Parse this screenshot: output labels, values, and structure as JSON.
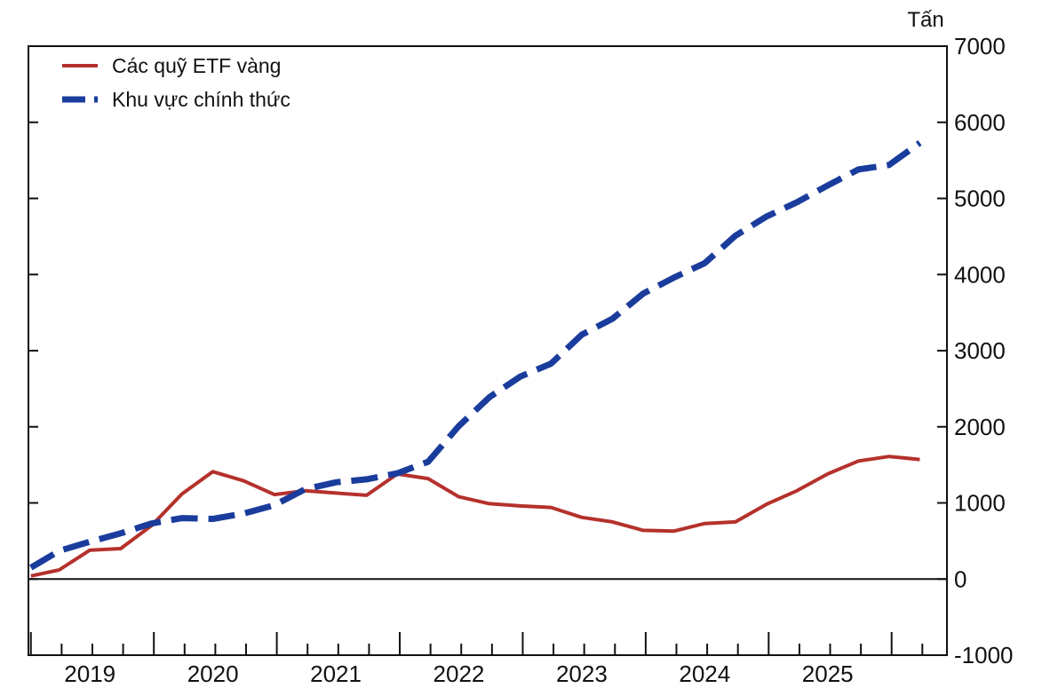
{
  "chart_data": {
    "type": "line",
    "title": "",
    "xlabel": "",
    "ylabel": "Tấn",
    "ylim": [
      -1000,
      7000
    ],
    "yticks": [
      -1000,
      0,
      1000,
      2000,
      3000,
      4000,
      5000,
      6000,
      7000
    ],
    "y_axis_side": "right",
    "grid": false,
    "legend_position": "top-left",
    "zero_line": true,
    "x_range": [
      2018.5,
      2025.97
    ],
    "year_labels": [
      "2019",
      "2020",
      "2021",
      "2022",
      "2023",
      "2024",
      "2025"
    ],
    "year_label_positions": [
      2019.0,
      2020.0,
      2021.0,
      2022.0,
      2023.0,
      2024.0,
      2025.0
    ],
    "x_ticks_major": [
      2018.52,
      2019.52,
      2020.52,
      2021.52,
      2022.52,
      2023.52,
      2024.52,
      2025.52
    ],
    "x_ticks_minor": [
      2018.77,
      2019.02,
      2019.27,
      2019.77,
      2020.02,
      2020.27,
      2020.77,
      2021.02,
      2021.27,
      2021.77,
      2022.02,
      2022.27,
      2022.77,
      2023.02,
      2023.27,
      2023.77,
      2024.02,
      2024.27,
      2024.77,
      2025.02,
      2025.27,
      2025.77
    ],
    "series": [
      {
        "name": "Các quỹ ETF vàng",
        "color": "#b5312c",
        "style": "solid",
        "x": [
          2018.52,
          2018.75,
          2019.0,
          2019.25,
          2019.5,
          2019.75,
          2020.0,
          2020.25,
          2020.5,
          2020.75,
          2021.0,
          2021.25,
          2021.5,
          2021.75,
          2022.0,
          2022.25,
          2022.5,
          2022.75,
          2023.0,
          2023.25,
          2023.5,
          2023.75,
          2024.0,
          2024.25,
          2024.5,
          2024.75,
          2025.0,
          2025.25,
          2025.5,
          2025.75
        ],
        "values": [
          40,
          120,
          380,
          400,
          700,
          1120,
          1410,
          1290,
          1110,
          1160,
          1130,
          1100,
          1380,
          1320,
          1080,
          990,
          960,
          940,
          810,
          750,
          640,
          630,
          730,
          750,
          980,
          1160,
          1380,
          1550,
          1610,
          1570
        ]
      },
      {
        "name": " Khu vực chính thức",
        "color": "#1a3c9c",
        "style": "dashed",
        "x": [
          2018.52,
          2018.75,
          2019.0,
          2019.25,
          2019.5,
          2019.75,
          2020.0,
          2020.25,
          2020.5,
          2020.75,
          2021.0,
          2021.25,
          2021.5,
          2021.75,
          2022.0,
          2022.25,
          2022.5,
          2022.75,
          2023.0,
          2023.25,
          2023.5,
          2023.75,
          2024.0,
          2024.25,
          2024.5,
          2024.75,
          2025.0,
          2025.25,
          2025.5,
          2025.75
        ],
        "values": [
          150,
          370,
          490,
          600,
          730,
          800,
          790,
          860,
          970,
          1180,
          1270,
          1310,
          1390,
          1540,
          2010,
          2390,
          2660,
          2830,
          3210,
          3420,
          3750,
          3960,
          4150,
          4510,
          4760,
          4950,
          5170,
          5380,
          5440,
          5730
        ]
      }
    ]
  }
}
